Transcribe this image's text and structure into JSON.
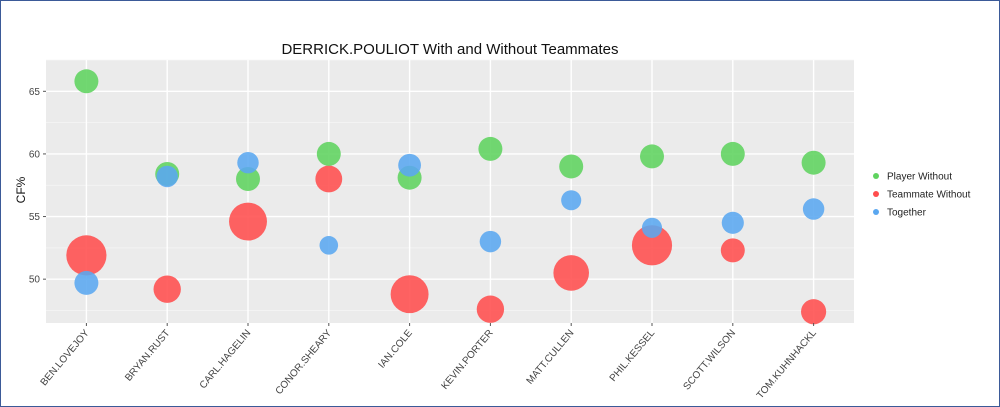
{
  "chart_data": {
    "type": "scatter",
    "title": "DERRICK.POULIOT With and Without Teammates",
    "xlabel": "",
    "ylabel": "CF%",
    "ylim": [
      46.5,
      67.5
    ],
    "yticks": [
      50,
      55,
      60,
      65
    ],
    "grid": true,
    "legend_position": "right",
    "categories": [
      "BEN.LOVEJOY",
      "BRYAN.RUST",
      "CARL.HAGELIN",
      "CONOR.SHEARY",
      "IAN.COLE",
      "KEVIN.PORTER",
      "MATT.CULLEN",
      "PHIL.KESSEL",
      "SCOTT.WILSON",
      "TOM.KUHNHACKL"
    ],
    "series": [
      {
        "name": "Player Without",
        "color": "#5fd35f",
        "values": [
          65.8,
          58.4,
          58.0,
          60.0,
          58.1,
          60.4,
          59.0,
          59.8,
          60.0,
          59.3
        ],
        "sizes": [
          1,
          1,
          1,
          1,
          1,
          1,
          1,
          1,
          1,
          1
        ]
      },
      {
        "name": "Teammate Without",
        "color": "#ff4d4d",
        "values": [
          51.9,
          49.2,
          54.6,
          58.0,
          48.8,
          47.6,
          50.5,
          52.7,
          52.3,
          47.4
        ],
        "sizes": [
          2.8,
          1.3,
          2.5,
          1.25,
          2.5,
          1.3,
          2.2,
          2.8,
          1.0,
          1.1
        ]
      },
      {
        "name": "Together",
        "color": "#5aa7f0",
        "values": [
          49.7,
          58.2,
          59.3,
          52.7,
          59.1,
          53.0,
          56.3,
          54.1,
          54.5,
          55.6
        ],
        "sizes": [
          1.0,
          0.8,
          0.8,
          0.6,
          0.9,
          0.8,
          0.7,
          0.7,
          0.85,
          0.8
        ]
      }
    ]
  }
}
